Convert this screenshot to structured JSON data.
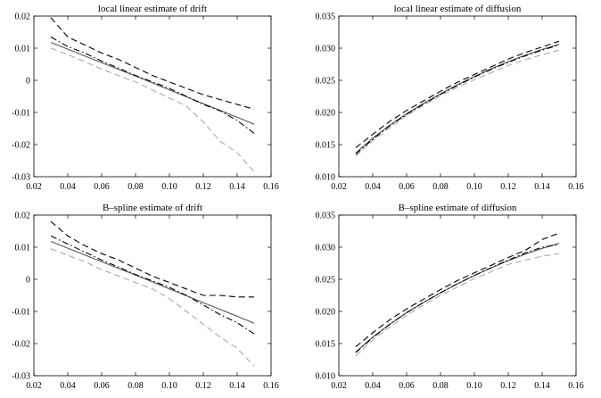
{
  "chart_data": [
    {
      "type": "line",
      "title": "local linear estimate of drift",
      "xlim": [
        0.02,
        0.16
      ],
      "ylim": [
        -0.03,
        0.02
      ],
      "xticks": [
        "0.02",
        "0.04",
        "0.06",
        "0.08",
        "0.10",
        "0.12",
        "0.14",
        "0.16"
      ],
      "yticks": [
        "0.02",
        "0.01",
        "0",
        "-0.01",
        "-0.02",
        "-0.03"
      ],
      "x": [
        0.03,
        0.04,
        0.05,
        0.06,
        0.07,
        0.08,
        0.09,
        0.1,
        0.11,
        0.12,
        0.13,
        0.14,
        0.15
      ],
      "series": [
        {
          "style": "solid",
          "color": "#555555",
          "values": [
            0.0118,
            0.0097,
            0.0076,
            0.0055,
            0.0034,
            0.0013,
            -0.0008,
            -0.003,
            -0.0051,
            -0.0073,
            -0.0094,
            -0.0115,
            -0.0137
          ]
        },
        {
          "style": "dashed",
          "color": "#000000",
          "values": [
            0.0195,
            0.0135,
            0.011,
            0.0085,
            0.0065,
            0.004,
            0.0015,
            -0.0005,
            -0.0025,
            -0.0045,
            -0.006,
            -0.0075,
            -0.009
          ]
        },
        {
          "style": "dashdot",
          "color": "#000000",
          "values": [
            0.0135,
            0.0105,
            0.0085,
            0.006,
            0.0038,
            0.0015,
            -0.0005,
            -0.0025,
            -0.005,
            -0.0075,
            -0.0095,
            -0.0125,
            -0.0165
          ]
        },
        {
          "style": "dashed",
          "color": "#aaaaaa",
          "values": [
            0.01,
            0.008,
            0.0058,
            0.0035,
            0.0015,
            -0.0005,
            -0.003,
            -0.0055,
            -0.008,
            -0.013,
            -0.019,
            -0.0225,
            -0.0285
          ]
        }
      ]
    },
    {
      "type": "line",
      "title": "local linear estimate of diffusion",
      "xlim": [
        0.02,
        0.16
      ],
      "ylim": [
        0.01,
        0.035
      ],
      "xticks": [
        "0.02",
        "0.04",
        "0.06",
        "0.08",
        "0.10",
        "0.12",
        "0.14",
        "0.16"
      ],
      "yticks": [
        "0.035",
        "0.030",
        "0.025",
        "0.020",
        "0.015",
        "0.010"
      ],
      "x": [
        0.03,
        0.04,
        0.05,
        0.06,
        0.07,
        0.08,
        0.09,
        0.1,
        0.11,
        0.12,
        0.13,
        0.14,
        0.15
      ],
      "series": [
        {
          "style": "solid",
          "color": "#555555",
          "values": [
            0.0137,
            0.016,
            0.018,
            0.0198,
            0.0214,
            0.0229,
            0.0243,
            0.0256,
            0.0268,
            0.0279,
            0.0289,
            0.0298,
            0.0306
          ]
        },
        {
          "style": "dashed",
          "color": "#000000",
          "values": [
            0.0145,
            0.0166,
            0.0186,
            0.0203,
            0.0218,
            0.0233,
            0.0247,
            0.0259,
            0.0271,
            0.0283,
            0.0293,
            0.0302,
            0.0311
          ]
        },
        {
          "style": "dashdot",
          "color": "#000000",
          "values": [
            0.0135,
            0.0158,
            0.0179,
            0.0197,
            0.0213,
            0.0228,
            0.0242,
            0.0255,
            0.0267,
            0.0278,
            0.0288,
            0.0297,
            0.0305
          ]
        },
        {
          "style": "dashed",
          "color": "#aaaaaa",
          "values": [
            0.0132,
            0.0156,
            0.0176,
            0.0195,
            0.0211,
            0.0226,
            0.0239,
            0.0251,
            0.0262,
            0.0273,
            0.0282,
            0.029,
            0.0297
          ]
        }
      ]
    },
    {
      "type": "line",
      "title": "B–spline estimate of drift",
      "xlim": [
        0.02,
        0.16
      ],
      "ylim": [
        -0.03,
        0.02
      ],
      "xticks": [
        "0.02",
        "0.04",
        "0.06",
        "0.08",
        "0.10",
        "0.12",
        "0.14",
        "0.16"
      ],
      "yticks": [
        "0.02",
        "0.01",
        "0",
        "-0.01",
        "-0.02",
        "-0.03"
      ],
      "x": [
        0.03,
        0.04,
        0.05,
        0.06,
        0.07,
        0.08,
        0.09,
        0.1,
        0.11,
        0.12,
        0.13,
        0.14,
        0.15
      ],
      "series": [
        {
          "style": "solid",
          "color": "#555555",
          "values": [
            0.0118,
            0.0097,
            0.0076,
            0.0055,
            0.0034,
            0.0013,
            -0.0008,
            -0.003,
            -0.0051,
            -0.0073,
            -0.0094,
            -0.0115,
            -0.0137
          ]
        },
        {
          "style": "dashed",
          "color": "#000000",
          "values": [
            0.018,
            0.0135,
            0.0105,
            0.008,
            0.006,
            0.0035,
            0.001,
            -0.001,
            -0.003,
            -0.005,
            -0.005,
            -0.0055,
            -0.0055
          ]
        },
        {
          "style": "dashdot",
          "color": "#000000",
          "values": [
            0.0135,
            0.011,
            0.0085,
            0.006,
            0.0038,
            0.0015,
            -0.0005,
            -0.0025,
            -0.005,
            -0.008,
            -0.011,
            -0.0135,
            -0.017
          ]
        },
        {
          "style": "dashed",
          "color": "#aaaaaa",
          "values": [
            0.0095,
            0.0075,
            0.0055,
            0.003,
            0.001,
            -0.001,
            -0.003,
            -0.006,
            -0.01,
            -0.014,
            -0.018,
            -0.0215,
            -0.027
          ]
        }
      ]
    },
    {
      "type": "line",
      "title": "B–spline estimate of diffusion",
      "xlim": [
        0.02,
        0.16
      ],
      "ylim": [
        0.01,
        0.035
      ],
      "xticks": [
        "0.02",
        "0.04",
        "0.06",
        "0.08",
        "0.10",
        "0.12",
        "0.14",
        "0.16"
      ],
      "yticks": [
        "0.035",
        "0.030",
        "0.025",
        "0.020",
        "0.015",
        "0.010"
      ],
      "x": [
        0.03,
        0.04,
        0.05,
        0.06,
        0.07,
        0.08,
        0.09,
        0.1,
        0.11,
        0.12,
        0.13,
        0.14,
        0.15
      ],
      "series": [
        {
          "style": "solid",
          "color": "#555555",
          "values": [
            0.0137,
            0.016,
            0.018,
            0.0198,
            0.0214,
            0.0229,
            0.0243,
            0.0256,
            0.0268,
            0.0279,
            0.0289,
            0.0298,
            0.0306
          ]
        },
        {
          "style": "dashed",
          "color": "#000000",
          "values": [
            0.0145,
            0.0167,
            0.0187,
            0.0204,
            0.0219,
            0.0234,
            0.0248,
            0.026,
            0.0272,
            0.0284,
            0.0295,
            0.0312,
            0.0322
          ]
        },
        {
          "style": "dashdot",
          "color": "#000000",
          "values": [
            0.0136,
            0.0159,
            0.018,
            0.0198,
            0.0214,
            0.0229,
            0.0243,
            0.0256,
            0.0268,
            0.028,
            0.0291,
            0.03,
            0.0304
          ]
        },
        {
          "style": "dashed",
          "color": "#aaaaaa",
          "values": [
            0.0131,
            0.0155,
            0.0176,
            0.0194,
            0.021,
            0.0225,
            0.0238,
            0.0251,
            0.0262,
            0.0273,
            0.028,
            0.0286,
            0.029
          ]
        }
      ]
    }
  ]
}
